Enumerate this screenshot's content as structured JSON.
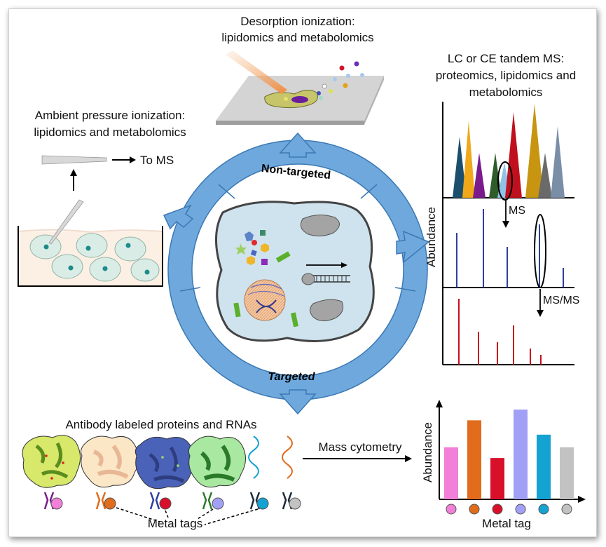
{
  "desorption": {
    "line1": "Desorption ionization:",
    "line2": "lipidomics and metabolomics"
  },
  "ambient": {
    "line1": "Ambient pressure ionization:",
    "line2": "lipidomics and metabolomics",
    "to_ms": "To MS"
  },
  "lc": {
    "line1": "LC or CE tandem MS:",
    "line2": "proteomics, lipidomics and",
    "line3": "metabolomics",
    "ylabel": "Abundance",
    "ms_label": "MS",
    "msms_label": "MS/MS"
  },
  "ring": {
    "top_label": "Non-targeted",
    "bottom_label": "Targeted"
  },
  "antibody": {
    "title": "Antibody labeled proteins and RNAs",
    "metal_tags": "Metal tags"
  },
  "mass_cytometry": {
    "label": "Mass cytometry"
  },
  "chart_data": {
    "type": "bar",
    "xlabel": "Metal tag",
    "ylabel": "Abundance",
    "categories": [
      "",
      "",
      "",
      "",
      "",
      ""
    ],
    "values": [
      0.58,
      0.88,
      0.46,
      1.0,
      0.72,
      0.58
    ],
    "colors": [
      "#f27fd8",
      "#e06c1c",
      "#d8102a",
      "#a2a0f6",
      "#13a2d2",
      "#c2c2c2"
    ]
  },
  "colors": {
    "ring": "#6fa8dc",
    "ring_dark": "#3b78b4",
    "cell": "#cfe3ee"
  }
}
